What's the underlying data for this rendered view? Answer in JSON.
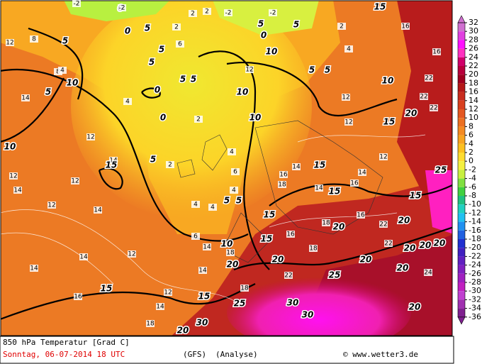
{
  "footer": {
    "title": "850 hPa Temperatur [Grad C]",
    "date": "Sonntag, 06-07-2014  18 UTC",
    "model": "(GFS)",
    "run": "(Analyse)",
    "credit": "© www.wetter3.de"
  },
  "legend": {
    "labels": [
      "32",
      "30",
      "28",
      "26",
      "24",
      "22",
      "20",
      "18",
      "16",
      "14",
      "12",
      "10",
      "8",
      "6",
      "4",
      "2",
      "0",
      "-2",
      "-4",
      "-6",
      "-8",
      "-10",
      "-12",
      "-14",
      "-16",
      "-18",
      "-20",
      "-22",
      "-24",
      "-26",
      "-28",
      "-30",
      "-32",
      "-34",
      "-36"
    ],
    "colors": [
      "#d070d0",
      "#e040e0",
      "#ff10ff",
      "#ff30c0",
      "#d0006a",
      "#b8003c",
      "#a00020",
      "#b41818",
      "#c82c1e",
      "#d84020",
      "#e45822",
      "#ec7022",
      "#f48a22",
      "#f8a420",
      "#fcc020",
      "#ffdc30",
      "#f4f040",
      "#c8f040",
      "#80e040",
      "#40d040",
      "#20c080",
      "#20d0c0",
      "#20c0f0",
      "#2090f0",
      "#2060e0",
      "#2030d0",
      "#4020c0",
      "#6020c0",
      "#8020c0",
      "#a020c0",
      "#c020c0",
      "#c040d0",
      "#a030b0",
      "#802090"
    ]
  },
  "map": {
    "labels": [
      "10",
      "5",
      "5",
      "10",
      "12",
      "14",
      "15",
      "12",
      "14",
      "12",
      "14",
      "12",
      "14",
      "14",
      "16",
      "15",
      "14",
      "12",
      "18",
      "20",
      "30",
      "15",
      "25",
      "30",
      "30",
      "25",
      "22",
      "20",
      "20",
      "18",
      "10",
      "18",
      "15",
      "15",
      "16",
      "18",
      "20",
      "18",
      "16",
      "20",
      "22",
      "22",
      "20",
      "20",
      "20",
      "20",
      "24",
      "20",
      "20",
      "25",
      "15",
      "16",
      "15",
      "14",
      "15",
      "14",
      "16",
      "18",
      "12",
      "14",
      "15",
      "12",
      "20",
      "22",
      "22",
      "22",
      "16",
      "16",
      "15",
      "10",
      "12",
      "10",
      "12",
      "10",
      "10",
      "5",
      "5",
      "4",
      "6",
      "4",
      "4",
      "4",
      "6",
      "14",
      "14",
      "5",
      "2",
      "0",
      "2",
      "4",
      "0",
      "5",
      "5",
      "5",
      "5",
      "6",
      "0",
      "5",
      "0",
      "2",
      "2",
      "2",
      "0",
      "5",
      "5",
      "2",
      "5",
      "5",
      "4",
      "-2",
      "-2",
      "-2",
      "-2",
      "12",
      "8",
      "14",
      "12",
      "8",
      "4"
    ]
  }
}
